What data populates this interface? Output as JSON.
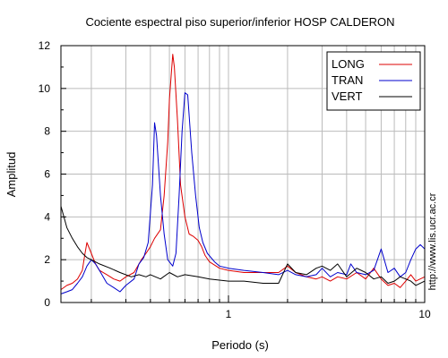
{
  "chart_data": {
    "type": "line",
    "title": "Cociente espectral piso superior/inferior  HOSP CALDERON",
    "xlabel": "Periodo (s)",
    "ylabel": "Amplitud",
    "x_scale": "log",
    "xlim": [
      0.14,
      10
    ],
    "ylim": [
      0,
      12
    ],
    "y_ticks": [
      0,
      2,
      4,
      6,
      8,
      10,
      12
    ],
    "x_tick_labels": [
      {
        "value": 1,
        "label": "1"
      },
      {
        "value": 10,
        "label": "10"
      }
    ],
    "x_minor_ticks": [
      0.2,
      0.3,
      0.4,
      0.5,
      0.6,
      0.7,
      0.8,
      0.9,
      2,
      3,
      4,
      5,
      6,
      7,
      8,
      9
    ],
    "grid": true,
    "legend_position": "top-right",
    "side_text": "http://www.lis.ucr.ac.cr",
    "series": [
      {
        "name": "LONG",
        "color": "#dd0000",
        "points": [
          [
            0.14,
            0.6
          ],
          [
            0.15,
            0.8
          ],
          [
            0.16,
            0.9
          ],
          [
            0.17,
            1.1
          ],
          [
            0.18,
            1.5
          ],
          [
            0.185,
            2.2
          ],
          [
            0.19,
            2.8
          ],
          [
            0.2,
            2.3
          ],
          [
            0.21,
            1.8
          ],
          [
            0.22,
            1.5
          ],
          [
            0.24,
            1.3
          ],
          [
            0.26,
            1.1
          ],
          [
            0.28,
            1.0
          ],
          [
            0.3,
            1.2
          ],
          [
            0.33,
            1.4
          ],
          [
            0.36,
            2.0
          ],
          [
            0.38,
            2.3
          ],
          [
            0.4,
            2.6
          ],
          [
            0.42,
            3.0
          ],
          [
            0.45,
            3.4
          ],
          [
            0.47,
            5.0
          ],
          [
            0.49,
            7.5
          ],
          [
            0.5,
            9.5
          ],
          [
            0.52,
            11.6
          ],
          [
            0.53,
            11.0
          ],
          [
            0.55,
            8.5
          ],
          [
            0.57,
            5.5
          ],
          [
            0.6,
            4.0
          ],
          [
            0.63,
            3.2
          ],
          [
            0.66,
            3.1
          ],
          [
            0.7,
            2.9
          ],
          [
            0.73,
            2.6
          ],
          [
            0.76,
            2.2
          ],
          [
            0.8,
            1.9
          ],
          [
            0.9,
            1.6
          ],
          [
            1.0,
            1.5
          ],
          [
            1.2,
            1.4
          ],
          [
            1.5,
            1.4
          ],
          [
            1.8,
            1.4
          ],
          [
            2.0,
            1.7
          ],
          [
            2.2,
            1.4
          ],
          [
            2.5,
            1.2
          ],
          [
            2.8,
            1.1
          ],
          [
            3.0,
            1.2
          ],
          [
            3.3,
            1.0
          ],
          [
            3.6,
            1.2
          ],
          [
            4.0,
            1.1
          ],
          [
            4.5,
            1.4
          ],
          [
            5.0,
            1.1
          ],
          [
            5.5,
            1.6
          ],
          [
            6.0,
            1.1
          ],
          [
            6.5,
            0.8
          ],
          [
            7.0,
            0.9
          ],
          [
            7.5,
            0.7
          ],
          [
            8.0,
            1.0
          ],
          [
            8.5,
            1.3
          ],
          [
            9.0,
            1.0
          ],
          [
            10.0,
            1.2
          ]
        ]
      },
      {
        "name": "TRAN",
        "color": "#0000cc",
        "points": [
          [
            0.14,
            0.4
          ],
          [
            0.15,
            0.5
          ],
          [
            0.16,
            0.6
          ],
          [
            0.17,
            0.9
          ],
          [
            0.18,
            1.2
          ],
          [
            0.19,
            1.7
          ],
          [
            0.2,
            2.0
          ],
          [
            0.21,
            1.8
          ],
          [
            0.22,
            1.5
          ],
          [
            0.24,
            0.9
          ],
          [
            0.26,
            0.7
          ],
          [
            0.28,
            0.5
          ],
          [
            0.3,
            0.8
          ],
          [
            0.33,
            1.1
          ],
          [
            0.35,
            1.8
          ],
          [
            0.37,
            2.1
          ],
          [
            0.39,
            2.8
          ],
          [
            0.41,
            5.5
          ],
          [
            0.42,
            8.4
          ],
          [
            0.43,
            7.8
          ],
          [
            0.45,
            5.0
          ],
          [
            0.47,
            3.2
          ],
          [
            0.49,
            2.0
          ],
          [
            0.52,
            1.7
          ],
          [
            0.54,
            2.3
          ],
          [
            0.56,
            5.0
          ],
          [
            0.58,
            8.0
          ],
          [
            0.6,
            9.8
          ],
          [
            0.62,
            9.7
          ],
          [
            0.65,
            7.0
          ],
          [
            0.68,
            5.0
          ],
          [
            0.71,
            3.5
          ],
          [
            0.74,
            2.8
          ],
          [
            0.78,
            2.3
          ],
          [
            0.85,
            1.9
          ],
          [
            0.9,
            1.7
          ],
          [
            1.0,
            1.6
          ],
          [
            1.2,
            1.5
          ],
          [
            1.5,
            1.4
          ],
          [
            1.8,
            1.3
          ],
          [
            2.0,
            1.5
          ],
          [
            2.2,
            1.3
          ],
          [
            2.5,
            1.2
          ],
          [
            2.8,
            1.3
          ],
          [
            3.0,
            1.6
          ],
          [
            3.3,
            1.2
          ],
          [
            3.6,
            1.4
          ],
          [
            4.0,
            1.3
          ],
          [
            4.2,
            1.8
          ],
          [
            4.5,
            1.4
          ],
          [
            5.0,
            1.3
          ],
          [
            5.5,
            1.5
          ],
          [
            6.0,
            2.5
          ],
          [
            6.5,
            1.4
          ],
          [
            7.0,
            1.6
          ],
          [
            7.5,
            1.2
          ],
          [
            8.0,
            1.4
          ],
          [
            8.5,
            2.0
          ],
          [
            9.0,
            2.5
          ],
          [
            9.5,
            2.7
          ],
          [
            10.0,
            2.5
          ]
        ]
      },
      {
        "name": "VERT",
        "color": "#000000",
        "points": [
          [
            0.14,
            4.5
          ],
          [
            0.145,
            4.0
          ],
          [
            0.15,
            3.5
          ],
          [
            0.16,
            3.0
          ],
          [
            0.17,
            2.6
          ],
          [
            0.18,
            2.3
          ],
          [
            0.19,
            2.1
          ],
          [
            0.2,
            2.0
          ],
          [
            0.22,
            1.8
          ],
          [
            0.25,
            1.6
          ],
          [
            0.28,
            1.4
          ],
          [
            0.32,
            1.2
          ],
          [
            0.35,
            1.3
          ],
          [
            0.38,
            1.2
          ],
          [
            0.4,
            1.3
          ],
          [
            0.45,
            1.1
          ],
          [
            0.5,
            1.4
          ],
          [
            0.55,
            1.2
          ],
          [
            0.6,
            1.3
          ],
          [
            0.7,
            1.2
          ],
          [
            0.8,
            1.1
          ],
          [
            1.0,
            1.0
          ],
          [
            1.2,
            1.0
          ],
          [
            1.5,
            0.9
          ],
          [
            1.8,
            0.9
          ],
          [
            2.0,
            1.8
          ],
          [
            2.2,
            1.4
          ],
          [
            2.5,
            1.3
          ],
          [
            2.8,
            1.6
          ],
          [
            3.0,
            1.7
          ],
          [
            3.3,
            1.5
          ],
          [
            3.6,
            1.8
          ],
          [
            4.0,
            1.2
          ],
          [
            4.5,
            1.6
          ],
          [
            5.0,
            1.4
          ],
          [
            5.5,
            1.1
          ],
          [
            6.0,
            1.2
          ],
          [
            6.5,
            0.9
          ],
          [
            7.0,
            1.0
          ],
          [
            7.5,
            1.2
          ],
          [
            8.0,
            1.1
          ],
          [
            8.5,
            1.0
          ],
          [
            9.0,
            0.8
          ],
          [
            10.0,
            1.0
          ]
        ]
      }
    ]
  }
}
